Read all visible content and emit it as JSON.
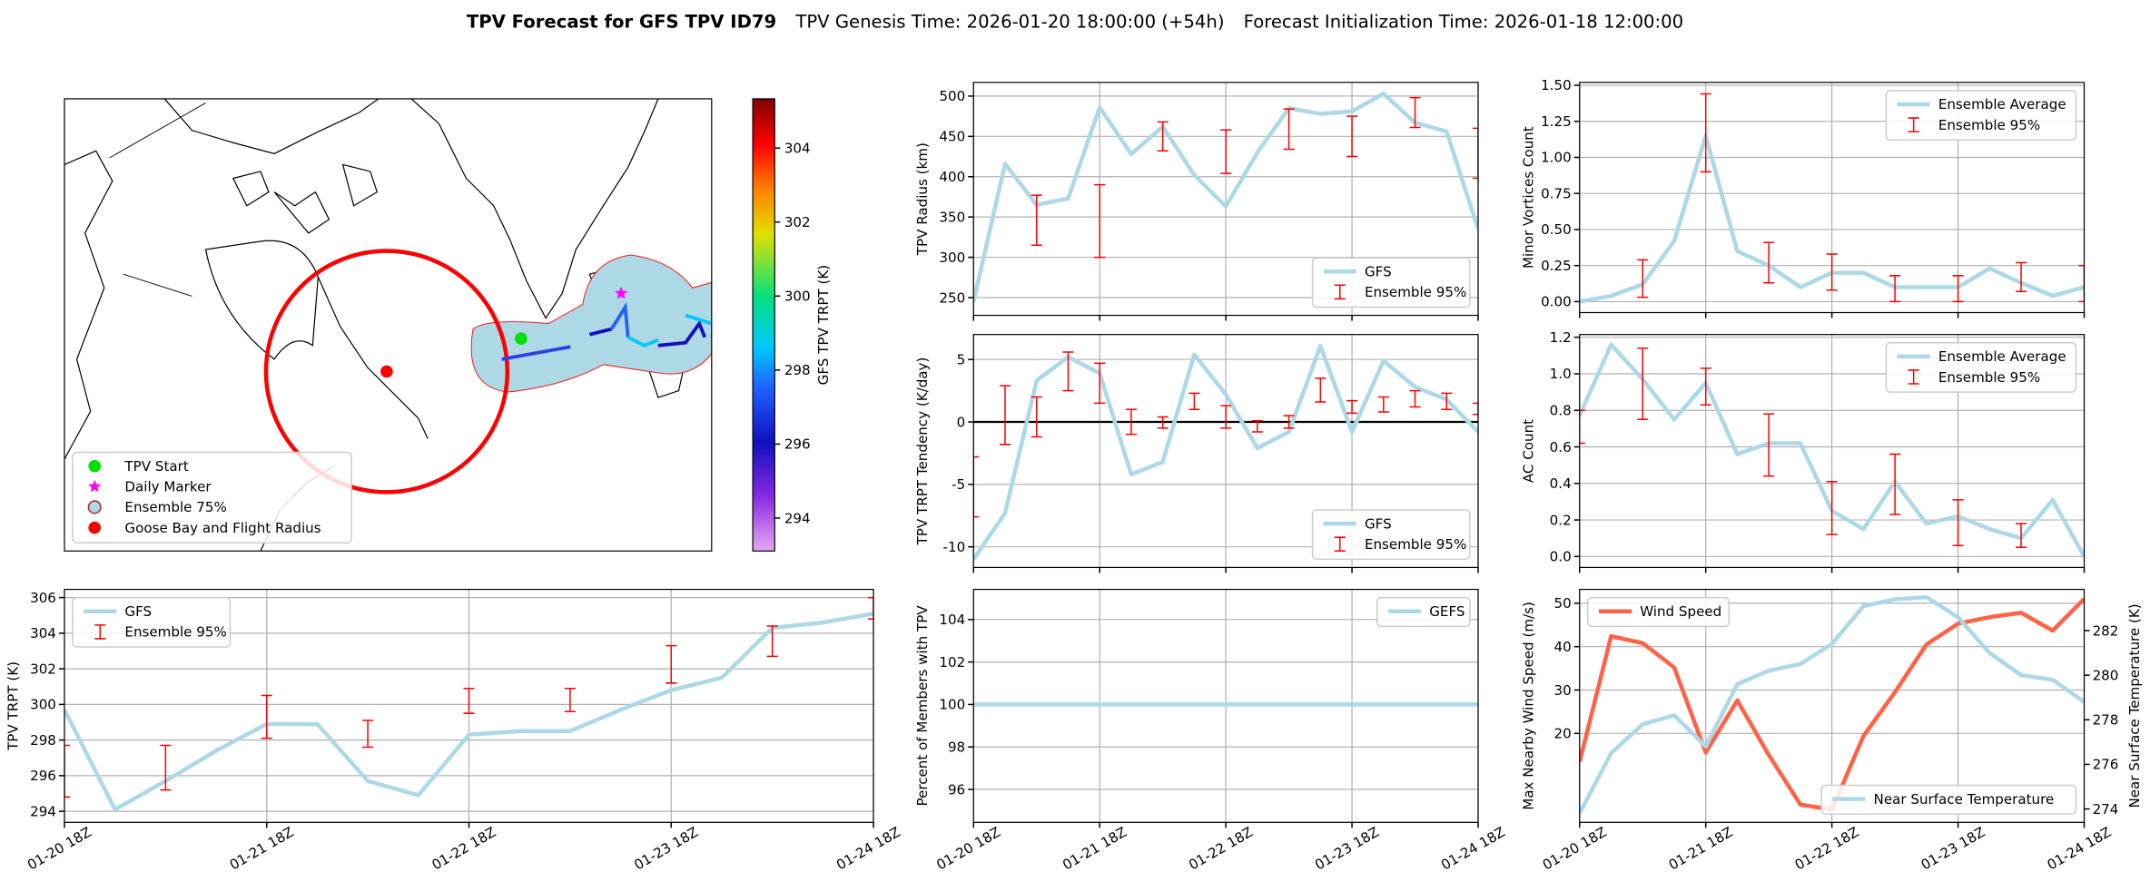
{
  "title": {
    "main": "TPV Forecast for GFS TPV ID79",
    "genesis": "TPV Genesis Time: 2026-01-20 18:00:00 (+54h)",
    "init": "Forecast Initialization Time: 2026-01-18 12:00:00"
  },
  "chart_data": [
    {
      "type": "map",
      "colorbar_label": "GFS TPV TRPT (K)",
      "clim": [
        293.11,
        305.33
      ],
      "cticks": [
        294,
        296,
        298,
        300,
        302,
        304
      ],
      "legend_loc": "lower left",
      "legend": [
        {
          "name": "TPV Start",
          "color": "#00e000",
          "marker": "circle"
        },
        {
          "name": "Daily Marker",
          "color": "#ff00ff",
          "marker": "star"
        },
        {
          "name": "Ensemble 75%",
          "color": "#add8e6",
          "edge": "#b22222",
          "marker": "circle"
        },
        {
          "name": "Goose Bay and Flight Radius",
          "color": "#ff0000",
          "marker": "circle"
        }
      ]
    },
    {
      "type": "line",
      "ylabel": "TPV TRPT (K)",
      "grid": true,
      "legend": "upper left",
      "xlim": [
        0,
        96
      ],
      "xticks": [
        {
          "value": 0,
          "label": "01-20 18Z"
        },
        {
          "value": 24,
          "label": "01-21 18Z"
        },
        {
          "value": 48,
          "label": "01-22 18Z"
        },
        {
          "value": 72,
          "label": "01-23 18Z"
        },
        {
          "value": 96,
          "label": "01-24 18Z"
        }
      ],
      "ylim": [
        293.38,
        306.46
      ],
      "yticks": [
        294,
        296,
        298,
        300,
        302,
        304,
        306
      ],
      "series": [
        {
          "name": "GFS",
          "kind": "line",
          "color": "#add8e6",
          "x": [
            0,
            6,
            12,
            18,
            24,
            30,
            36,
            42,
            48,
            54,
            60,
            66,
            72,
            78,
            84,
            90,
            96
          ],
          "values": [
            299.7,
            294.1,
            295.7,
            297.4,
            298.9,
            298.9,
            295.7,
            294.9,
            298.3,
            298.5,
            298.5,
            299.7,
            300.8,
            301.5,
            304.3,
            304.6,
            305.1
          ]
        },
        {
          "name": "Ensemble 95%",
          "kind": "errorbar",
          "color": "#ff0000",
          "x": [
            0,
            12,
            24,
            36,
            48,
            60,
            72,
            84,
            96
          ],
          "low": [
            294.8,
            295.2,
            298.1,
            297.6,
            299.5,
            299.6,
            301.2,
            302.7,
            304.8
          ],
          "high": [
            297.7,
            297.7,
            300.5,
            299.1,
            300.9,
            300.9,
            303.3,
            304.4,
            306.0
          ]
        }
      ]
    },
    {
      "type": "line",
      "ylabel": "TPV Radius (km)",
      "grid": true,
      "legend": "lower right",
      "xlim": [
        0,
        96
      ],
      "xticks": [
        0,
        24,
        48,
        72,
        96
      ],
      "ylim": [
        228,
        517
      ],
      "yticks": [
        250,
        300,
        350,
        400,
        450,
        500
      ],
      "series": [
        {
          "name": "GFS",
          "kind": "line",
          "color": "#add8e6",
          "x": [
            0,
            6,
            12,
            18,
            24,
            30,
            36,
            42,
            48,
            54,
            60,
            66,
            72,
            78,
            84,
            90,
            96
          ],
          "values": [
            245,
            416,
            365,
            373,
            486,
            428,
            462,
            402,
            363,
            430,
            485,
            478,
            481,
            503,
            467,
            456,
            335
          ]
        },
        {
          "name": "Ensemble 95%",
          "kind": "errorbar",
          "color": "#ff0000",
          "x": [
            12,
            24,
            36,
            48,
            60,
            72,
            84,
            96
          ],
          "low": [
            315,
            300,
            432,
            404,
            434,
            425,
            461,
            398
          ],
          "high": [
            377,
            390,
            468,
            458,
            484,
            475,
            498,
            460
          ]
        }
      ]
    },
    {
      "type": "line",
      "ylabel": "TPV TRPT Tendency (K/day)",
      "grid": true,
      "legend": "lower right",
      "reference_line": 0,
      "xlim": [
        0,
        96
      ],
      "xticks": [
        0,
        24,
        48,
        72,
        96
      ],
      "ylim": [
        -11.65,
        7.0
      ],
      "yticks": [
        -10,
        -5,
        0,
        5
      ],
      "series": [
        {
          "name": "GFS",
          "kind": "line",
          "color": "#add8e6",
          "x": [
            0,
            6,
            12,
            18,
            24,
            30,
            36,
            42,
            48,
            54,
            60,
            66,
            72,
            78,
            84,
            90,
            96
          ],
          "values": [
            -11,
            -7.3,
            3.3,
            5.2,
            3.9,
            -4.2,
            -3.2,
            5.4,
            2.2,
            -2.1,
            -0.8,
            6.1,
            -0.8,
            4.9,
            2.8,
            1.8,
            -0.8
          ]
        },
        {
          "name": "Ensemble 95%",
          "kind": "errorbar",
          "color": "#ff0000",
          "x": [
            0,
            6,
            12,
            18,
            24,
            30,
            36,
            42,
            48,
            54,
            60,
            66,
            72,
            78,
            84,
            90,
            96
          ],
          "low": [
            -7.6,
            -1.8,
            -1.2,
            2.5,
            1.5,
            -1,
            -0.5,
            1,
            -0.5,
            -0.8,
            -0.5,
            1.6,
            0.7,
            0.8,
            1.2,
            1,
            0.6
          ],
          "high": [
            -2.8,
            2.9,
            2,
            5.6,
            4.7,
            1,
            0.4,
            2.3,
            1.3,
            0.1,
            0.5,
            3.5,
            1.7,
            2,
            2.5,
            2.3,
            1.5
          ]
        }
      ]
    },
    {
      "type": "line",
      "ylabel": "Percent of Members with TPV",
      "grid": true,
      "legend": "upper right",
      "xlim": [
        0,
        96
      ],
      "xticks": [
        {
          "value": 0,
          "label": "01-20 18Z"
        },
        {
          "value": 24,
          "label": "01-21 18Z"
        },
        {
          "value": 48,
          "label": "01-22 18Z"
        },
        {
          "value": 72,
          "label": "01-23 18Z"
        },
        {
          "value": 96,
          "label": "01-24 18Z"
        }
      ],
      "ylim": [
        94.45,
        105.42
      ],
      "yticks": [
        96,
        98,
        100,
        102,
        104
      ],
      "series": [
        {
          "name": "GEFS",
          "kind": "line",
          "color": "#add8e6",
          "x": [
            0,
            6,
            12,
            18,
            24,
            30,
            36,
            42,
            48,
            54,
            60,
            66,
            72,
            78,
            84,
            90,
            96
          ],
          "values": [
            100,
            100,
            100,
            100,
            100,
            100,
            100,
            100,
            100,
            100,
            100,
            100,
            100,
            100,
            100,
            100,
            100
          ]
        }
      ]
    },
    {
      "type": "line",
      "ylabel": "Minor Vortices Count",
      "grid": true,
      "legend": "upper right",
      "xlim": [
        0,
        96
      ],
      "xticks": [
        0,
        24,
        48,
        72,
        96
      ],
      "ylim": [
        -0.076,
        1.52
      ],
      "yticks": [
        {
          "value": 0,
          "label": "0.00"
        },
        {
          "value": 0.25,
          "label": "0.25"
        },
        {
          "value": 0.5,
          "label": "0.50"
        },
        {
          "value": 0.75,
          "label": "0.75"
        },
        {
          "value": 1,
          "label": "1.00"
        },
        {
          "value": 1.25,
          "label": "1.25"
        },
        {
          "value": 1.5,
          "label": "1.50"
        }
      ],
      "series": [
        {
          "name": "Ensemble Average",
          "kind": "line",
          "color": "#add8e6",
          "x": [
            0,
            6,
            12,
            18,
            24,
            30,
            36,
            42,
            48,
            54,
            60,
            66,
            72,
            78,
            84,
            90,
            96
          ],
          "values": [
            0,
            0.04,
            0.12,
            0.42,
            1.15,
            0.35,
            0.25,
            0.1,
            0.2,
            0.2,
            0.1,
            0.1,
            0.1,
            0.23,
            0.13,
            0.04,
            0.1
          ]
        },
        {
          "name": "Ensemble 95%",
          "kind": "errorbar",
          "color": "#ff0000",
          "x": [
            12,
            24,
            36,
            48,
            60,
            72,
            84,
            96
          ],
          "low": [
            0.03,
            0.9,
            0.13,
            0.08,
            0,
            0,
            0.07,
            0
          ],
          "high": [
            0.29,
            1.44,
            0.41,
            0.33,
            0.18,
            0.18,
            0.27,
            0.25
          ]
        }
      ]
    },
    {
      "type": "line",
      "ylabel": "AC Count",
      "grid": true,
      "legend": "upper right",
      "xlim": [
        0,
        96
      ],
      "xticks": [
        0,
        24,
        48,
        72,
        96
      ],
      "ylim": [
        -0.06,
        1.215
      ],
      "yticks": [
        {
          "value": 0,
          "label": "0.0"
        },
        0.2,
        0.4,
        0.6,
        0.8,
        {
          "value": 1,
          "label": "1.0"
        },
        1.2
      ],
      "series": [
        {
          "name": "Ensemble Average",
          "kind": "line",
          "color": "#add8e6",
          "x": [
            0,
            6,
            12,
            18,
            24,
            30,
            36,
            42,
            48,
            54,
            60,
            66,
            72,
            78,
            84,
            90,
            96
          ],
          "values": [
            0.77,
            1.16,
            0.97,
            0.75,
            0.95,
            0.56,
            0.62,
            0.62,
            0.25,
            0.15,
            0.41,
            0.18,
            0.22,
            0.15,
            0.1,
            0.31,
            0
          ]
        },
        {
          "name": "Ensemble 95%",
          "kind": "errorbar",
          "color": "#ff0000",
          "x": [
            0,
            12,
            24,
            36,
            48,
            60,
            72,
            84
          ],
          "low": [
            0.62,
            0.75,
            0.83,
            0.44,
            0.12,
            0.23,
            0.06,
            0.05
          ],
          "high": [
            0.8,
            1.14,
            1.03,
            0.78,
            0.41,
            0.56,
            0.31,
            0.18
          ]
        }
      ]
    },
    {
      "type": "line",
      "ylabel": "Max Nearby Wind Speed (m/s)",
      "ylabel_color": "#ff6347",
      "y2label": "Near Surface Temperature (K)",
      "y2label_color": "#4169e1",
      "grid": true,
      "legend": "upper left",
      "xlim": [
        0,
        96
      ],
      "xticks": [
        {
          "value": 0,
          "label": "01-20 18Z"
        },
        {
          "value": 24,
          "label": "01-21 18Z"
        },
        {
          "value": 48,
          "label": "01-22 18Z"
        },
        {
          "value": 72,
          "label": "01-23 18Z"
        },
        {
          "value": 96,
          "label": "01-24 18Z"
        }
      ],
      "ylim": [
        -0.5,
        53.2
      ],
      "yticks": [
        20,
        30,
        40,
        50
      ],
      "y2lim": [
        273.4,
        283.85
      ],
      "y2ticks": [
        274,
        276,
        278,
        280,
        282
      ],
      "series": [
        {
          "name": "Wind Speed",
          "kind": "line",
          "color": "#ff6347",
          "x": [
            0,
            6,
            12,
            18,
            24,
            30,
            36,
            42,
            48,
            54,
            60,
            66,
            72,
            78,
            84,
            90,
            96
          ],
          "values": [
            13.4,
            42.4,
            40.8,
            35.2,
            15.6,
            27.6,
            15,
            3.6,
            2.4,
            19.4,
            29.5,
            40.5,
            45.3,
            46.8,
            47.8,
            43.7,
            51
          ]
        },
        {
          "name": "Near Surface Temperature",
          "kind": "line",
          "axis": "y2",
          "legend": "lower right",
          "color": "#add8e6",
          "x": [
            0,
            6,
            12,
            18,
            24,
            30,
            36,
            42,
            48,
            54,
            60,
            66,
            72,
            78,
            84,
            90,
            96
          ],
          "values": [
            273.8,
            276.5,
            277.8,
            278.2,
            276.8,
            279.6,
            280.2,
            280.5,
            281.4,
            283.1,
            283.4,
            283.5,
            282.6,
            281,
            280,
            279.8,
            278.8
          ]
        }
      ]
    }
  ]
}
